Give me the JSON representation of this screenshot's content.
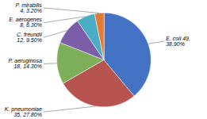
{
  "chart_data": {
    "type": "pie",
    "categories": [
      "E. coli",
      "K. pneumoniae",
      "P. aeruginosa",
      "C. freundii",
      "E. aerogenes",
      "P. mirabilis"
    ],
    "values": [
      38.9,
      27.8,
      14.3,
      9.5,
      6.3,
      3.2
    ],
    "colors": [
      "#4472C4",
      "#B85450",
      "#7DAF5A",
      "#7B5EA7",
      "#4BACC6",
      "#E07B39"
    ],
    "data_labels": true,
    "value_labels": [
      "E. coli 49,\n38.90%",
      "K. pneumoniae\n35, 27.80%",
      "P. aeruginosa\n18, 14.30%",
      "C. freundii\n12, 9.50%",
      "E. aerogenes\n8, 6.30%",
      "P. mirabilis\n4, 3.20%"
    ]
  }
}
